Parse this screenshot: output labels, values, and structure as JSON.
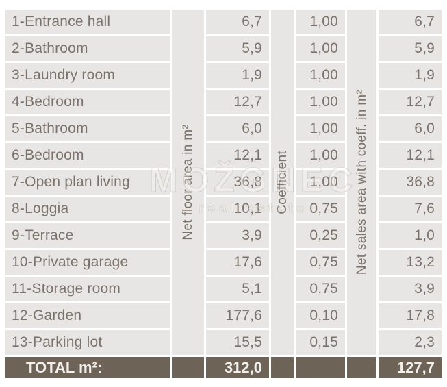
{
  "table": {
    "column_labels": {
      "net_floor": "Net floor area in m²",
      "coefficient": "Coefficient",
      "net_sales": "Net sales area with coeff. in m²"
    },
    "rows": [
      {
        "name": "1-Entrance hall",
        "net": "6,7",
        "coeff": "1,00",
        "sales": "6,7"
      },
      {
        "name": "2-Bathroom",
        "net": "5,9",
        "coeff": "1,00",
        "sales": "5,9"
      },
      {
        "name": "3-Laundry room",
        "net": "1,9",
        "coeff": "1,00",
        "sales": "1,9"
      },
      {
        "name": "4-Bedroom",
        "net": "12,7",
        "coeff": "1,00",
        "sales": "12,7"
      },
      {
        "name": "5-Bathroom",
        "net": "6,0",
        "coeff": "1,00",
        "sales": "6,0"
      },
      {
        "name": "6-Bedroom",
        "net": "12,1",
        "coeff": "1,00",
        "sales": "12,1"
      },
      {
        "name": "7-Open plan living",
        "net": "36,8",
        "coeff": "1,00",
        "sales": "36,8"
      },
      {
        "name": "8-Loggia",
        "net": "10,1",
        "coeff": "0,75",
        "sales": "7,6"
      },
      {
        "name": "9-Terrace",
        "net": "3,9",
        "coeff": "0,25",
        "sales": "1,0"
      },
      {
        "name": "10-Private garage",
        "net": "17,6",
        "coeff": "0,75",
        "sales": "13,2"
      },
      {
        "name": "11-Storage room",
        "net": "5,1",
        "coeff": "0,75",
        "sales": "3,9"
      },
      {
        "name": "12-Garden",
        "net": "177,6",
        "coeff": "0,10",
        "sales": "17,8"
      },
      {
        "name": "13-Parking lot",
        "net": "15,5",
        "coeff": "0,15",
        "sales": "2,3"
      }
    ],
    "total": {
      "label": "TOTAL m²:",
      "net": "312,0",
      "sales": "127,7"
    }
  },
  "watermark": {
    "line1": "MOŽGNEC",
    "line2": "real estate"
  },
  "colors": {
    "cell_bg": "#e8e6e4",
    "text": "#7b736b",
    "total_bg": "#6e6357",
    "total_text": "#f2f0ec",
    "page_bg": "#ffffff"
  }
}
